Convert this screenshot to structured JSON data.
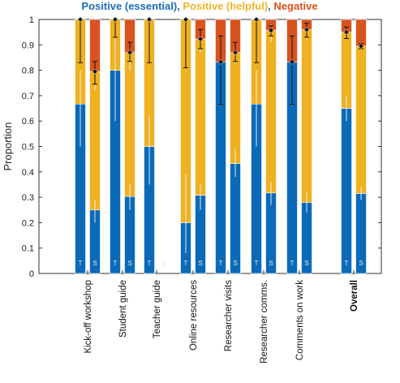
{
  "chart_data": {
    "type": "bar",
    "stacked": true,
    "title_parts": [
      {
        "text": "Positive (essential)",
        "color": "#1a6cb8"
      },
      {
        "text": ", ",
        "color": "#1a6cb8"
      },
      {
        "text": "Positive (helpful)",
        "color": "#f0b429"
      },
      {
        "text": ", ",
        "color": "#1a6cb8"
      },
      {
        "text": "Negative",
        "color": "#d95319"
      }
    ],
    "ylabel": "Proportion",
    "xlabel": "",
    "ylim": [
      0,
      1
    ],
    "yticks": [
      "0",
      "0.1",
      "0.2",
      "0.3",
      "0.4",
      "0.5",
      "0.6",
      "0.7",
      "0.8",
      "0.9",
      "1"
    ],
    "legend_placement": "top",
    "grid": false,
    "series_colors": {
      "essential": "#0a6ab8",
      "helpful": "#eeb122",
      "negative": "#d9531e"
    },
    "categories": [
      {
        "label": "Kick-off workshop",
        "bold": false,
        "bars": [
          {
            "code": "T",
            "essential": 0.667,
            "helpful": 0.333,
            "negative": 0.0,
            "essential_err": [
              0.5,
              0.8
            ],
            "helpful_err": [
              0.83,
              1.0
            ],
            "marker": 1.0,
            "marker_err": [
              0.83,
              1.0
            ]
          },
          {
            "code": "S",
            "essential": 0.25,
            "helpful": 0.545,
            "negative": 0.205,
            "essential_err": [
              0.2,
              0.29
            ],
            "helpful_err": [
              0.72,
              0.83
            ],
            "marker": 0.795,
            "marker_err": [
              0.745,
              0.835
            ]
          }
        ]
      },
      {
        "label": "Student guide",
        "bold": false,
        "bars": [
          {
            "code": "T",
            "essential": 0.8,
            "helpful": 0.2,
            "negative": 0.0,
            "essential_err": [
              0.6,
              0.92
            ],
            "helpful_err": [
              0.92,
              1.0
            ],
            "marker": 1.0,
            "marker_err": [
              0.93,
              1.0
            ]
          },
          {
            "code": "S",
            "essential": 0.303,
            "helpful": 0.567,
            "negative": 0.13,
            "essential_err": [
              0.25,
              0.35
            ],
            "helpful_err": [
              0.8,
              0.9
            ],
            "marker": 0.87,
            "marker_err": [
              0.835,
              0.91
            ]
          }
        ]
      },
      {
        "label": "Teacher guide",
        "bold": false,
        "bars": [
          {
            "code": "T",
            "essential": 0.5,
            "helpful": 0.5,
            "negative": 0.0,
            "essential_err": [
              0.35,
              0.62
            ],
            "helpful_err": [
              0.83,
              1.0
            ],
            "marker": 1.0,
            "marker_err": [
              0.83,
              1.0
            ]
          },
          {
            "code": "S",
            "essential": 0.0,
            "helpful": 0.0,
            "negative": 0.0,
            "essential_err": null,
            "helpful_err": null,
            "marker": null,
            "marker_err": null
          }
        ]
      },
      {
        "label": "Online resources",
        "bold": false,
        "bars": [
          {
            "code": "T",
            "essential": 0.2,
            "helpful": 0.8,
            "negative": 0.0,
            "essential_err": [
              0.08,
              0.39
            ],
            "helpful_err": [
              0.81,
              1.0
            ],
            "marker": 1.0,
            "marker_err": [
              0.81,
              1.0
            ]
          },
          {
            "code": "S",
            "essential": 0.308,
            "helpful": 0.615,
            "negative": 0.077,
            "essential_err": [
              0.25,
              0.35
            ],
            "helpful_err": [
              0.87,
              0.95
            ],
            "marker": 0.923,
            "marker_err": [
              0.885,
              0.96
            ]
          }
        ]
      },
      {
        "label": "Researcher visits",
        "bold": false,
        "bars": [
          {
            "code": "T",
            "essential": 0.833,
            "helpful": 0.0,
            "negative": 0.167,
            "essential_err": [
              0.66,
              0.93
            ],
            "helpful_err": null,
            "marker": 0.833,
            "marker_err": [
              0.665,
              0.935
            ]
          },
          {
            "code": "S",
            "essential": 0.433,
            "helpful": 0.437,
            "negative": 0.13,
            "essential_err": [
              0.38,
              0.49
            ],
            "helpful_err": [
              0.83,
              0.91
            ],
            "marker": 0.87,
            "marker_err": [
              0.835,
              0.91
            ]
          }
        ]
      },
      {
        "label": "Researcher comms.",
        "bold": false,
        "bars": [
          {
            "code": "T",
            "essential": 0.667,
            "helpful": 0.333,
            "negative": 0.0,
            "essential_err": [
              0.5,
              0.8
            ],
            "helpful_err": [
              0.83,
              1.0
            ],
            "marker": 1.0,
            "marker_err": [
              0.83,
              1.0
            ]
          },
          {
            "code": "S",
            "essential": 0.317,
            "helpful": 0.64,
            "negative": 0.043,
            "essential_err": [
              0.27,
              0.36
            ],
            "helpful_err": [
              0.91,
              0.98
            ],
            "marker": 0.957,
            "marker_err": [
              0.935,
              0.975
            ]
          }
        ]
      },
      {
        "label": "Comments on work",
        "bold": false,
        "bars": [
          {
            "code": "T",
            "essential": 0.833,
            "helpful": 0.0,
            "negative": 0.167,
            "essential_err": [
              0.66,
              0.93
            ],
            "helpful_err": null,
            "marker": 0.833,
            "marker_err": [
              0.665,
              0.935
            ]
          },
          {
            "code": "S",
            "essential": 0.28,
            "helpful": 0.68,
            "negative": 0.04,
            "essential_err": [
              0.24,
              0.32
            ],
            "helpful_err": [
              0.92,
              0.98
            ],
            "marker": 0.96,
            "marker_err": [
              0.93,
              0.985
            ]
          }
        ]
      },
      {
        "label": "Overall",
        "bold": true,
        "bars": [
          {
            "code": "T",
            "essential": 0.65,
            "helpful": 0.3,
            "negative": 0.05,
            "essential_err": [
              0.6,
              0.7
            ],
            "helpful_err": [
              0.93,
              0.97
            ],
            "marker": 0.95,
            "marker_err": [
              0.925,
              0.97
            ]
          },
          {
            "code": "S",
            "essential": 0.315,
            "helpful": 0.58,
            "negative": 0.105,
            "essential_err": [
              0.29,
              0.34
            ],
            "helpful_err": [
              0.885,
              0.905
            ],
            "marker": 0.895,
            "marker_err": [
              0.885,
              0.905
            ]
          }
        ]
      }
    ]
  }
}
